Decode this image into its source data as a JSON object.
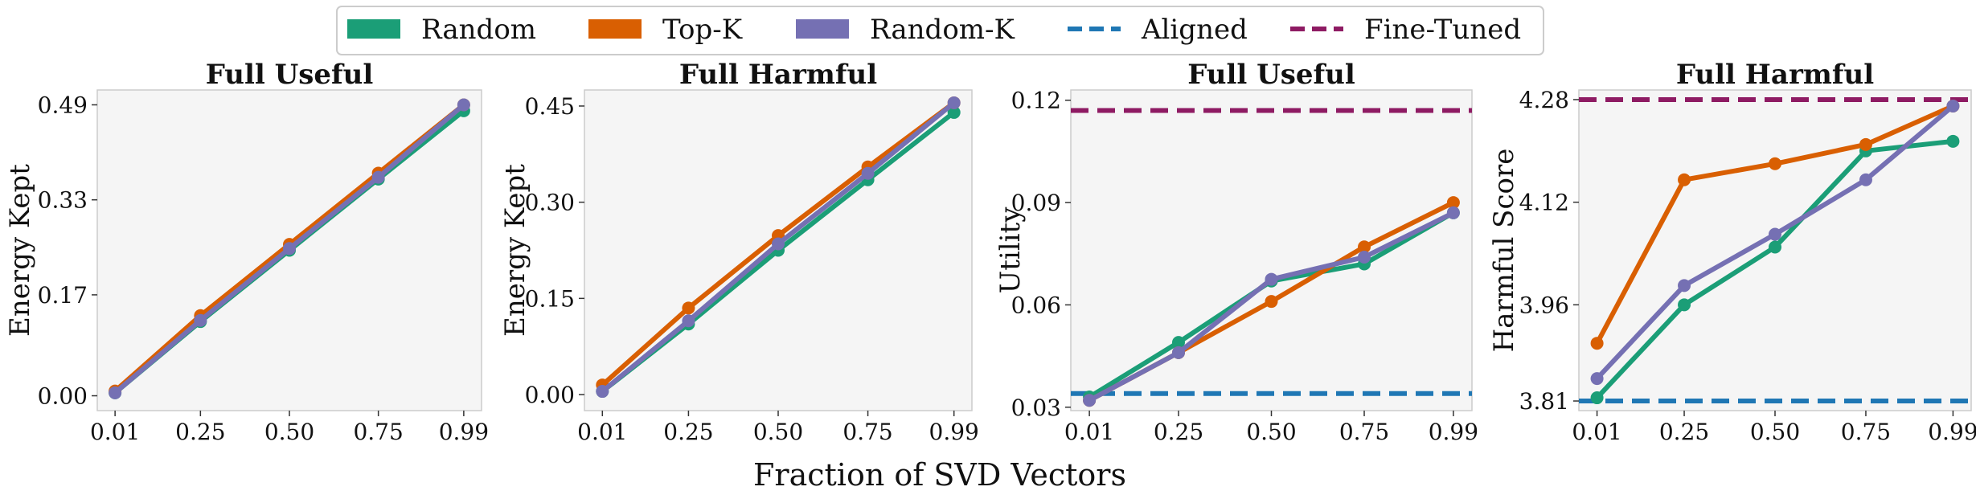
{
  "figure": {
    "shared_xlabel": "Fraction of SVD Vectors"
  },
  "legend": {
    "entries": [
      {
        "label": "Random",
        "color": "#1b9e77",
        "kind": "patch"
      },
      {
        "label": "Top-K",
        "color": "#d95f02",
        "kind": "patch"
      },
      {
        "label": "Random-K",
        "color": "#7570b3",
        "kind": "patch"
      },
      {
        "label": "Aligned",
        "color": "#1f77b4",
        "kind": "dashed"
      },
      {
        "label": "Fine-Tuned",
        "color": "#8e1b63",
        "kind": "dashed"
      }
    ]
  },
  "chart_data": [
    {
      "type": "line",
      "title": "Full Useful",
      "xlabel": "",
      "ylabel": "Energy Kept",
      "x": [
        0.01,
        0.25,
        0.5,
        0.75,
        0.99
      ],
      "xticks": [
        "0.01",
        "0.25",
        "0.50",
        "0.75",
        "0.99"
      ],
      "yticks": [
        "0.00",
        "0.17",
        "0.33",
        "0.49"
      ],
      "ylim": [
        -0.025,
        0.515
      ],
      "series": [
        {
          "name": "Random",
          "color": "#1b9e77",
          "values": [
            0.005,
            0.125,
            0.245,
            0.365,
            0.48
          ]
        },
        {
          "name": "Top-K",
          "color": "#d95f02",
          "values": [
            0.008,
            0.135,
            0.255,
            0.375,
            0.49
          ]
        },
        {
          "name": "Random-K",
          "color": "#7570b3",
          "values": [
            0.005,
            0.127,
            0.248,
            0.368,
            0.49
          ]
        }
      ],
      "hlines": []
    },
    {
      "type": "line",
      "title": "Full Harmful",
      "xlabel": "",
      "ylabel": "Energy Kept",
      "x": [
        0.01,
        0.25,
        0.5,
        0.75,
        0.99
      ],
      "xticks": [
        "0.01",
        "0.25",
        "0.50",
        "0.75",
        "0.99"
      ],
      "yticks": [
        "0.00",
        "0.15",
        "0.30",
        "0.45"
      ],
      "ylim": [
        -0.025,
        0.475
      ],
      "series": [
        {
          "name": "Random",
          "color": "#1b9e77",
          "values": [
            0.005,
            0.11,
            0.225,
            0.335,
            0.44
          ]
        },
        {
          "name": "Top-K",
          "color": "#d95f02",
          "values": [
            0.015,
            0.135,
            0.248,
            0.355,
            0.455
          ]
        },
        {
          "name": "Random-K",
          "color": "#7570b3",
          "values": [
            0.005,
            0.115,
            0.235,
            0.345,
            0.455
          ]
        }
      ],
      "hlines": []
    },
    {
      "type": "line",
      "title": "Full Useful",
      "xlabel": "",
      "ylabel": "Utility",
      "x": [
        0.01,
        0.25,
        0.5,
        0.75,
        0.99
      ],
      "xticks": [
        "0.01",
        "0.25",
        "0.50",
        "0.75",
        "0.99"
      ],
      "yticks": [
        "0.03",
        "0.06",
        "0.09",
        "0.12"
      ],
      "ylim": [
        0.029,
        0.123
      ],
      "series": [
        {
          "name": "Random",
          "color": "#1b9e77",
          "values": [
            0.033,
            0.049,
            0.067,
            0.072,
            0.087
          ]
        },
        {
          "name": "Top-K",
          "color": "#d95f02",
          "values": [
            0.032,
            0.046,
            0.061,
            0.077,
            0.09
          ]
        },
        {
          "name": "Random-K",
          "color": "#7570b3",
          "values": [
            0.032,
            0.046,
            0.0675,
            0.074,
            0.087
          ]
        }
      ],
      "hlines": [
        {
          "name": "Aligned",
          "color": "#1f77b4",
          "value": 0.034
        },
        {
          "name": "Fine-Tuned",
          "color": "#8e1b63",
          "value": 0.117
        }
      ]
    },
    {
      "type": "line",
      "title": "Full Harmful",
      "xlabel": "",
      "ylabel": "Harmful Score",
      "x": [
        0.01,
        0.25,
        0.5,
        0.75,
        0.99
      ],
      "xticks": [
        "0.01",
        "0.25",
        "0.50",
        "0.75",
        "0.99"
      ],
      "yticks": [
        "3.81",
        "3.96",
        "4.12",
        "4.28"
      ],
      "ylim": [
        3.795,
        4.295
      ],
      "series": [
        {
          "name": "Random",
          "color": "#1b9e77",
          "values": [
            3.815,
            3.96,
            4.05,
            4.2,
            4.215
          ]
        },
        {
          "name": "Top-K",
          "color": "#d95f02",
          "values": [
            3.9,
            4.155,
            4.18,
            4.21,
            4.27
          ]
        },
        {
          "name": "Random-K",
          "color": "#7570b3",
          "values": [
            3.845,
            3.99,
            4.07,
            4.155,
            4.27
          ]
        }
      ],
      "hlines": [
        {
          "name": "Aligned",
          "color": "#1f77b4",
          "value": 3.81
        },
        {
          "name": "Fine-Tuned",
          "color": "#8e1b63",
          "value": 4.28
        }
      ]
    }
  ]
}
